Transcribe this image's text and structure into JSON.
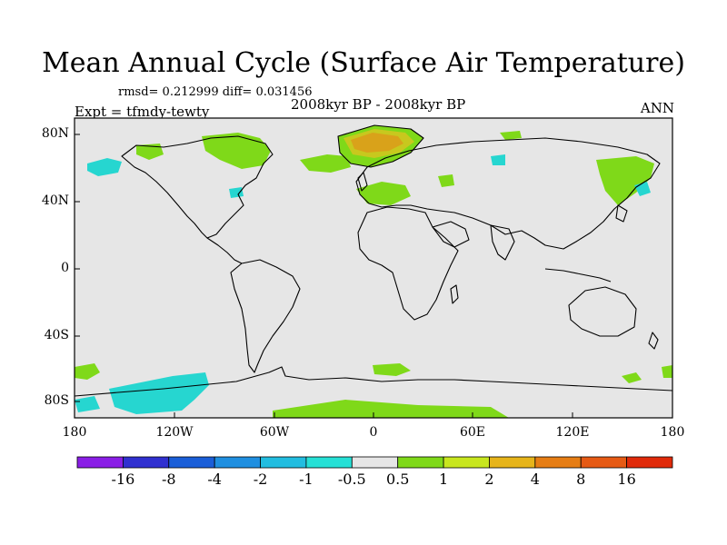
{
  "title": "Mean Annual Cycle (Surface Air Temperature)",
  "stats": "rmsd= 0.212999 diff= 0.031456",
  "period": "2008kyr BP - 2008kyr BP",
  "experiment": "Expt = tfmdy-tewty",
  "season": "ANN",
  "lat_ticks": [
    "80N",
    "40N",
    "0",
    "40S",
    "80S"
  ],
  "lon_ticks": [
    "180",
    "120W",
    "60W",
    "0",
    "60E",
    "120E",
    "180"
  ],
  "colorbar": {
    "labels": [
      "-16",
      "-8",
      "-4",
      "-2",
      "-1",
      "-0.5",
      "0.5",
      "1",
      "2",
      "4",
      "8",
      "16"
    ],
    "colors": [
      "#8a1ee6",
      "#3030d0",
      "#1a5ed8",
      "#1f8fe0",
      "#22bde0",
      "#26e0d6",
      "#e6e6e6",
      "#7fd919",
      "#c8e61e",
      "#e6b41a",
      "#e67d14",
      "#e65a14",
      "#e02a0a"
    ]
  },
  "colors": {
    "neutral": "#e6e6e6",
    "warm1": "#7fd919",
    "warm3": "#d9a21a",
    "warm2": "#c8c81e",
    "cool1": "#26d6d0"
  }
}
